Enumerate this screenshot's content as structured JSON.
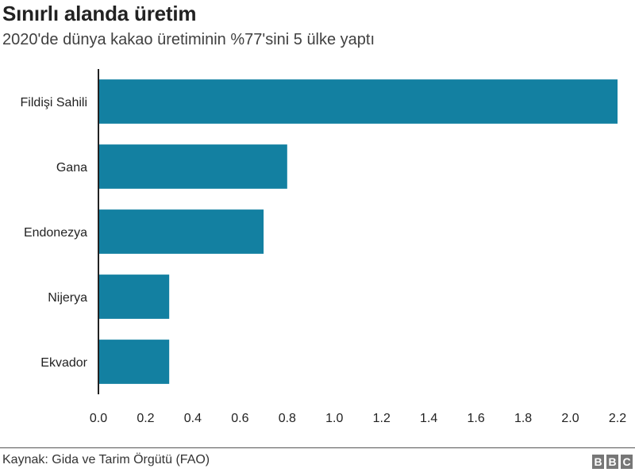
{
  "title": "Sınırlı alanda üretim",
  "subtitle": "2020'de dünya kakao üretiminin %77'sini 5 ülke yaptı",
  "source": "Kaynak: Gida ve Tarim Örgütü (FAO)",
  "logo": [
    "B",
    "B",
    "C"
  ],
  "colors": {
    "bar": "#1380A1",
    "axis": "#222222",
    "text": "#222222"
  },
  "chart_data": {
    "type": "bar",
    "orientation": "horizontal",
    "categories": [
      "Fildişi Sahili",
      "Gana",
      "Endonezya",
      "Nijerya",
      "Ekvador"
    ],
    "values": [
      2.2,
      0.8,
      0.7,
      0.3,
      0.3
    ],
    "xlim": [
      0,
      2.2
    ],
    "xticks": [
      "0.0",
      "0.2",
      "0.4",
      "0.6",
      "0.8",
      "1.0",
      "1.2",
      "1.4",
      "1.6",
      "1.8",
      "2.0",
      "2.2"
    ],
    "grid": false,
    "legend": "none"
  }
}
